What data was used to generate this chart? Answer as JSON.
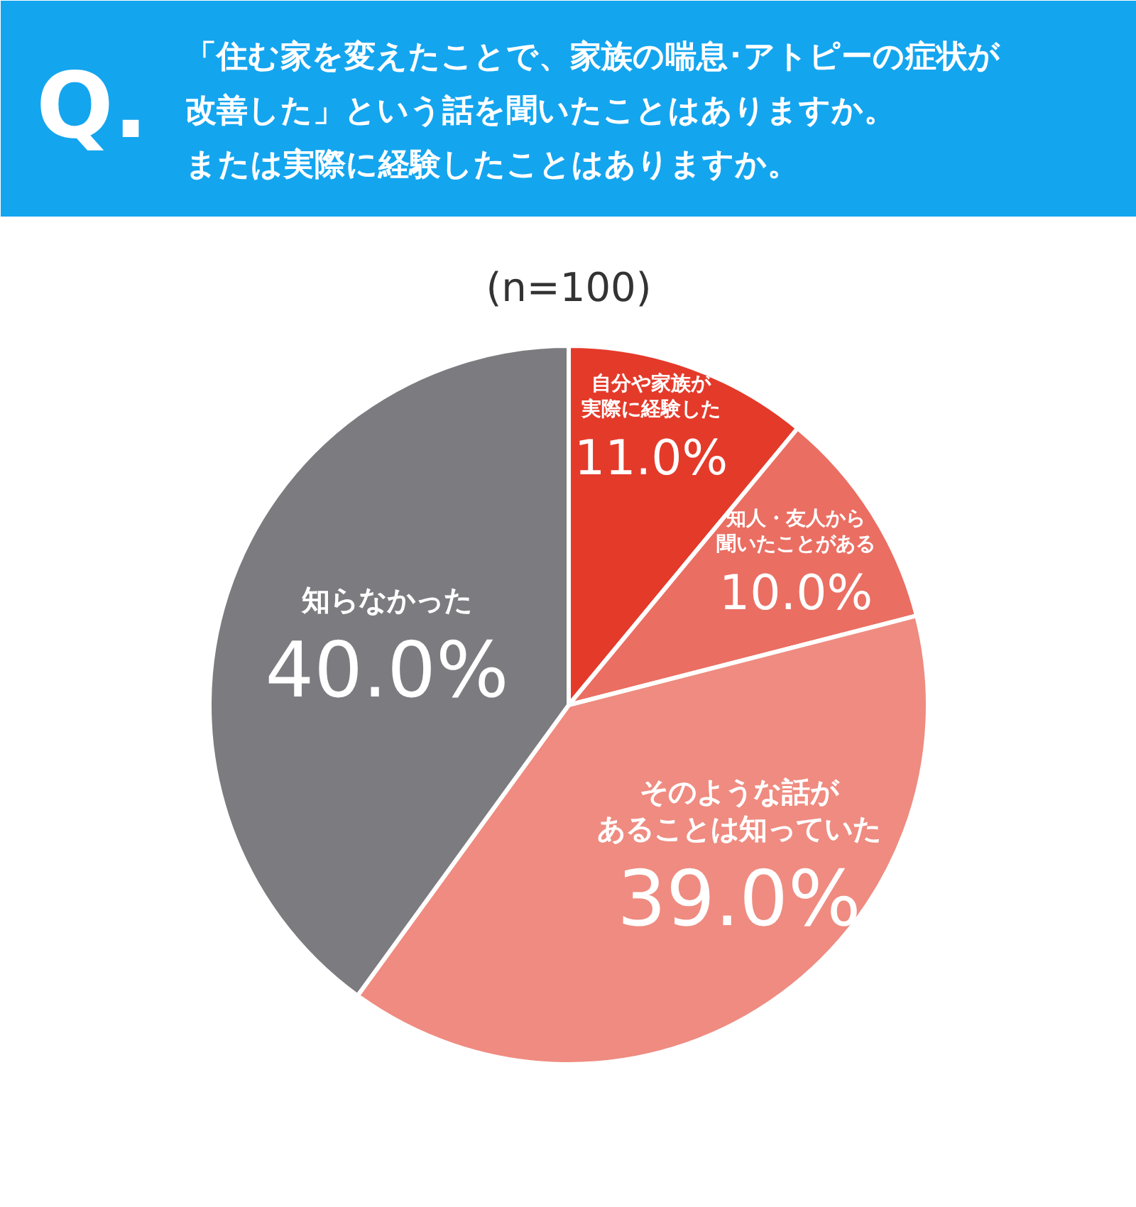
{
  "chart_data": {
    "type": "pie",
    "title": "「住む家を変えたことで、家族の喘息･アトピーの症状が改善した」という話を聞いたことはありますか。または実際に経験したことはありますか。",
    "subtitle": "(n=100)",
    "annotations": [
      "Q."
    ],
    "categories": [
      "自分や家族が実際に経験した",
      "知人・友人から聞いたことがある",
      "そのような話があることは知っていた",
      "知らなかった"
    ],
    "values": [
      11.0,
      10.0,
      39.0,
      40.0
    ],
    "colors": [
      "#e43a2a",
      "#ea6e62",
      "#ef8b80",
      "#7b7b80"
    ],
    "value_labels": [
      "11.0%",
      "10.0%",
      "39.0%",
      "40.0%"
    ]
  }
}
